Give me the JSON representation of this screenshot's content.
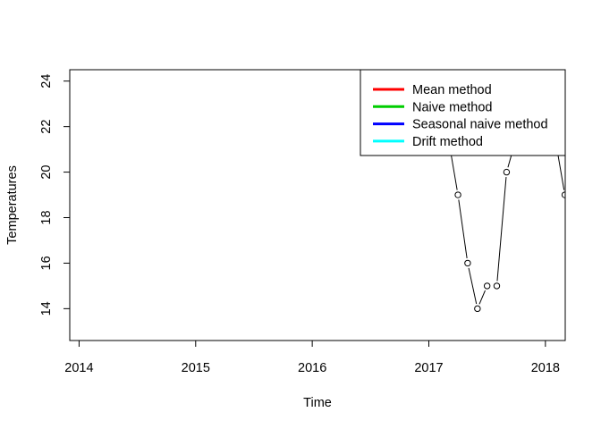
{
  "chart_data": {
    "type": "line",
    "title": "",
    "xlabel": "Time",
    "ylabel": "Temperatures",
    "xlim": [
      2013.92,
      2018.17
    ],
    "ylim": [
      12.6,
      24.5
    ],
    "x_ticks": [
      2014,
      2015,
      2016,
      2017,
      2018
    ],
    "x_tick_labels": [
      "2014",
      "2015",
      "2016",
      "2017",
      "2018"
    ],
    "y_ticks": [
      14,
      16,
      18,
      20,
      22,
      24
    ],
    "y_tick_labels": [
      "14",
      "16",
      "18",
      "20",
      "22",
      "24"
    ],
    "grid": false,
    "legend_position": "top-right",
    "series": [
      {
        "color": "#000000",
        "markers": "open-circle",
        "x": [
          2017.08,
          2017.167,
          2017.25,
          2017.333,
          2017.417,
          2017.5,
          2017.583,
          2017.667,
          2017.75,
          2017.833,
          2017.917,
          2018.0,
          2018.083,
          2018.167
        ],
        "y": [
          23,
          21.5,
          19,
          16,
          14,
          15,
          15,
          20,
          21.5,
          23,
          24,
          23,
          21.5,
          19
        ]
      }
    ],
    "legend": [
      {
        "label": "Mean method",
        "color": "#FF0000"
      },
      {
        "label": "Naive method",
        "color": "#00CD00"
      },
      {
        "label": "Seasonal naive method",
        "color": "#0000FF"
      },
      {
        "label": "Drift method",
        "color": "#00FFFF"
      }
    ]
  }
}
